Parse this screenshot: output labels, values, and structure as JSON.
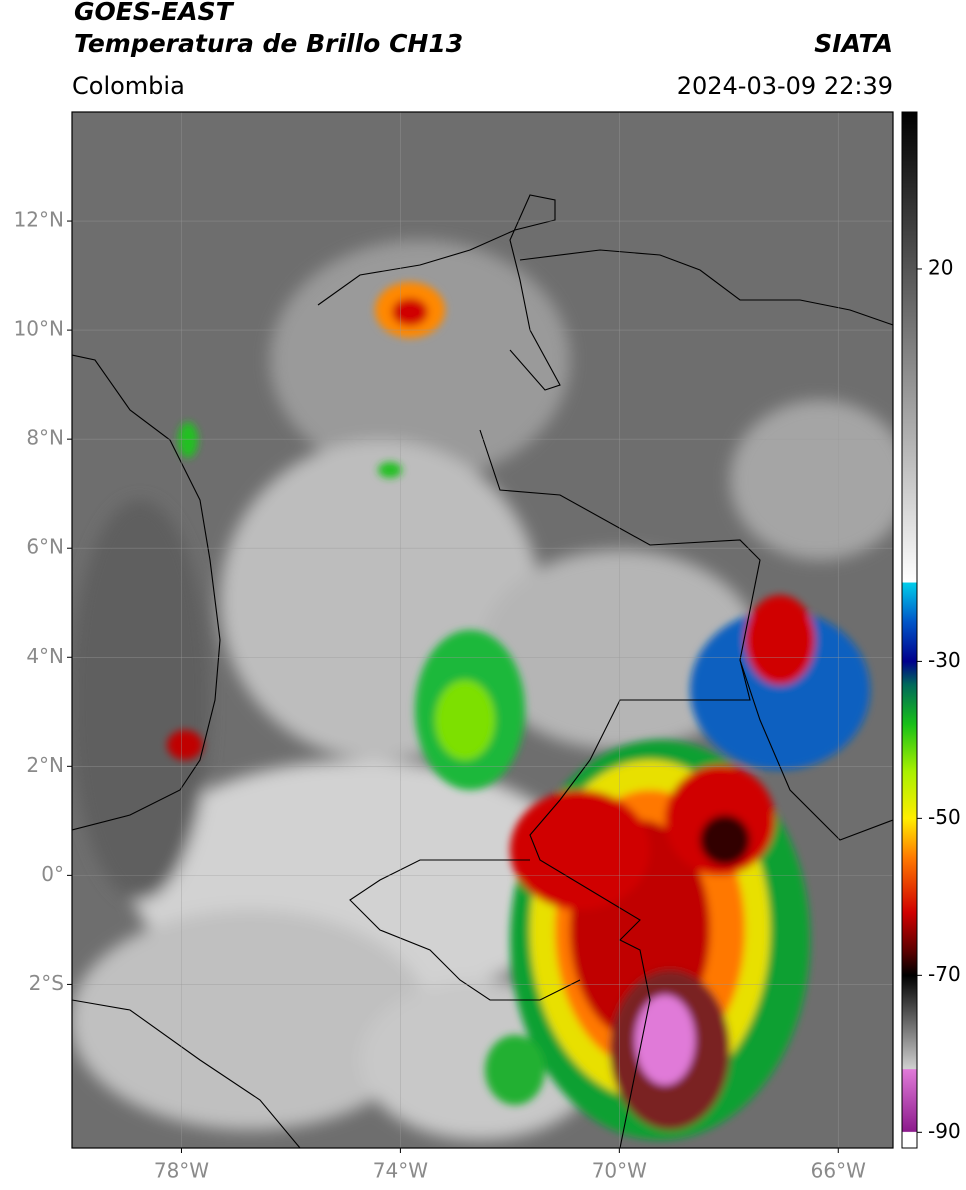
{
  "chart_data": {
    "type": "map",
    "title": "GOES-EAST",
    "subtitle": "Temperatura de Brillo CH13",
    "source": "SIATA",
    "region": "Colombia",
    "timestamp": "2024-03-09 22:39",
    "xlim": [
      -80,
      -65
    ],
    "ylim": [
      -5,
      14
    ],
    "xticks": [
      {
        "value": -78,
        "label": "78°W"
      },
      {
        "value": -74,
        "label": "74°W"
      },
      {
        "value": -70,
        "label": "70°W"
      },
      {
        "value": -66,
        "label": "66°W"
      }
    ],
    "yticks": [
      {
        "value": 12,
        "label": "12°N"
      },
      {
        "value": 10,
        "label": "10°N"
      },
      {
        "value": 8,
        "label": "8°N"
      },
      {
        "value": 6,
        "label": "6°N"
      },
      {
        "value": 4,
        "label": "4°N"
      },
      {
        "value": 2,
        "label": "2°N"
      },
      {
        "value": 0,
        "label": "0°"
      },
      {
        "value": -2,
        "label": "2°S"
      }
    ],
    "grid": true,
    "colorbar": {
      "lim": [
        -92,
        40
      ],
      "ticks": [
        20,
        -30,
        -50,
        -70,
        -90
      ],
      "stops": [
        {
          "value": -92,
          "color": "#ffffff"
        },
        {
          "value": -90,
          "color": "#ffffff"
        },
        {
          "value": -89.9,
          "color": "#8c1a8c"
        },
        {
          "value": -82,
          "color": "#e07ad8"
        },
        {
          "value": -81.9,
          "color": "#d0d0d0"
        },
        {
          "value": -70,
          "color": "#000000"
        },
        {
          "value": -67,
          "color": "#5a0000"
        },
        {
          "value": -62,
          "color": "#d00000"
        },
        {
          "value": -55,
          "color": "#ff7a00"
        },
        {
          "value": -50,
          "color": "#ffee00"
        },
        {
          "value": -44,
          "color": "#a8f000"
        },
        {
          "value": -38,
          "color": "#18c018"
        },
        {
          "value": -33,
          "color": "#006a5a"
        },
        {
          "value": -30,
          "color": "#00008c"
        },
        {
          "value": -25,
          "color": "#0055c8"
        },
        {
          "value": -20,
          "color": "#00cdea"
        },
        {
          "value": -19.9,
          "color": "#ffffff"
        },
        {
          "value": 40,
          "color": "#000000"
        }
      ]
    }
  }
}
